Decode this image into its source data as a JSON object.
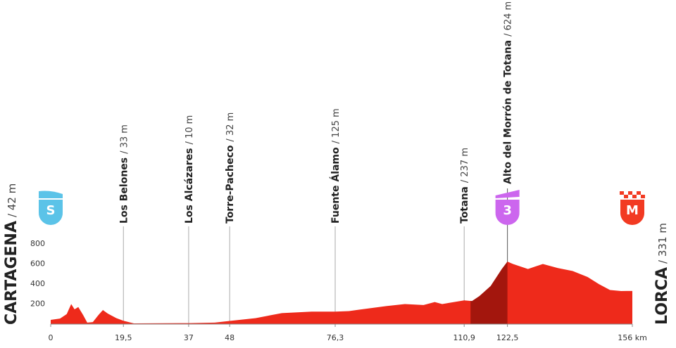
{
  "chart_data": {
    "type": "area",
    "start": {
      "name": "CARTAGENA",
      "detail": "/ 42 m",
      "badge": "S",
      "color": "#5bc3e8"
    },
    "finish": {
      "name": "LORCA",
      "detail": "/ 331 m",
      "badge": "M",
      "color": "#f23a22"
    },
    "x": [
      0,
      2.5,
      4.3,
      5.5,
      6.4,
      7.4,
      8.7,
      9.8,
      11.3,
      12.8,
      14,
      15.3,
      17.6,
      19.5,
      22.3,
      37,
      44,
      48,
      55,
      62,
      70,
      76.3,
      80,
      90,
      95,
      100,
      103,
      105,
      110.9,
      113,
      115,
      118,
      121,
      122.5,
      124,
      128,
      132,
      136,
      140,
      144,
      147,
      150,
      153,
      156
    ],
    "series": [
      {
        "color": "#ee2a1b",
        "values": [
          42,
          55,
          100,
          200,
          147,
          170,
          90,
          15,
          20,
          90,
          140,
          105,
          60,
          33,
          7,
          10,
          15,
          32,
          60,
          110,
          125,
          125,
          130,
          180,
          200,
          190,
          220,
          200,
          237,
          230,
          280,
          380,
          550,
          624,
          600,
          550,
          600,
          560,
          530,
          470,
          400,
          340,
          330,
          331
        ]
      }
    ],
    "climb": {
      "from": 112.6,
      "to": 122.5,
      "color": "#a3160d",
      "badge": "3",
      "badge_color": "#cc66ee"
    },
    "waypoints": [
      {
        "km": 19.5,
        "name": "Los Belones",
        "detail": "/ 33 m"
      },
      {
        "km": 37,
        "name": "Los Alcázares",
        "detail": "/ 10 m"
      },
      {
        "km": 48,
        "name": "Torre-Pacheco",
        "detail": "/ 32 m"
      },
      {
        "km": 76.3,
        "name": "Fuente Álamo",
        "detail": "/ 125 m"
      },
      {
        "km": 110.9,
        "name": "Totana",
        "detail": "/ 237 m"
      },
      {
        "km": 122.5,
        "name": "Alto del Morrón de Totana",
        "detail": "/ 624 m"
      }
    ],
    "xlim": [
      0,
      156
    ],
    "xticks": [
      0,
      {
        "value": 19.5,
        "label": "19,5"
      },
      37,
      48,
      {
        "value": 76.3,
        "label": "76,3"
      },
      {
        "value": 110.9,
        "label": "110,9"
      },
      {
        "value": 122.5,
        "label": "122,5"
      },
      {
        "value": 156,
        "label": "156 km"
      }
    ],
    "ylim": [
      0,
      800
    ],
    "yticks": [
      200,
      400,
      600,
      800
    ]
  }
}
